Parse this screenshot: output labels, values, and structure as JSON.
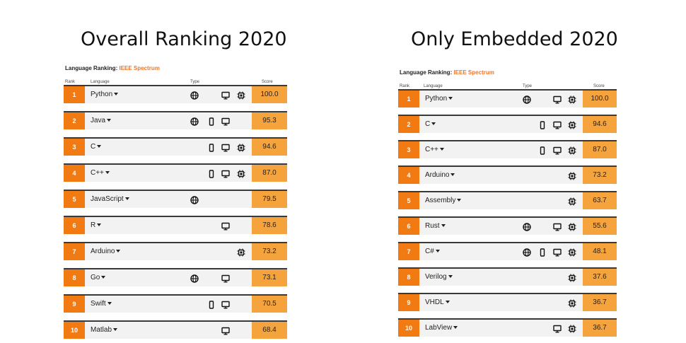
{
  "left": {
    "title": "Overall Ranking 2020",
    "subhead_label": "Language Ranking:",
    "subhead_source": "IEEE Spectrum",
    "headers": {
      "rank": "Rank",
      "language": "Language",
      "type": "Type",
      "score": "Score"
    },
    "rows": [
      {
        "rank": "1",
        "language": "Python",
        "score": "100.0",
        "types": [
          "web",
          "",
          "desktop",
          "embedded"
        ]
      },
      {
        "rank": "2",
        "language": "Java",
        "score": "95.3",
        "types": [
          "web",
          "mobile",
          "desktop",
          ""
        ]
      },
      {
        "rank": "3",
        "language": "C",
        "score": "94.6",
        "types": [
          "",
          "mobile",
          "desktop",
          "embedded"
        ]
      },
      {
        "rank": "4",
        "language": "C++",
        "score": "87.0",
        "types": [
          "",
          "mobile",
          "desktop",
          "embedded"
        ]
      },
      {
        "rank": "5",
        "language": "JavaScript",
        "score": "79.5",
        "types": [
          "web",
          "",
          "",
          ""
        ]
      },
      {
        "rank": "6",
        "language": "R",
        "score": "78.6",
        "types": [
          "",
          "",
          "desktop",
          ""
        ]
      },
      {
        "rank": "7",
        "language": "Arduino",
        "score": "73.2",
        "types": [
          "",
          "",
          "",
          "embedded"
        ]
      },
      {
        "rank": "8",
        "language": "Go",
        "score": "73.1",
        "types": [
          "web",
          "",
          "desktop",
          ""
        ]
      },
      {
        "rank": "9",
        "language": "Swift",
        "score": "70.5",
        "types": [
          "",
          "mobile",
          "desktop",
          ""
        ]
      },
      {
        "rank": "10",
        "language": "Matlab",
        "score": "68.4",
        "types": [
          "",
          "",
          "desktop",
          ""
        ]
      }
    ]
  },
  "right": {
    "title": "Only Embedded 2020",
    "subhead_label": "Language Ranking:",
    "subhead_source": "IEEE Spectrum",
    "headers": {
      "rank": "Rank",
      "language": "Language",
      "type": "Type",
      "score": "Score"
    },
    "rows": [
      {
        "rank": "1",
        "language": "Python",
        "score": "100.0",
        "types": [
          "web",
          "",
          "desktop",
          "embedded"
        ]
      },
      {
        "rank": "2",
        "language": "C",
        "score": "94.6",
        "types": [
          "",
          "mobile",
          "desktop",
          "embedded"
        ]
      },
      {
        "rank": "3",
        "language": "C++",
        "score": "87.0",
        "types": [
          "",
          "mobile",
          "desktop",
          "embedded"
        ]
      },
      {
        "rank": "4",
        "language": "Arduino",
        "score": "73.2",
        "types": [
          "",
          "",
          "",
          "embedded"
        ]
      },
      {
        "rank": "5",
        "language": "Assembly",
        "score": "63.7",
        "types": [
          "",
          "",
          "",
          "embedded"
        ]
      },
      {
        "rank": "6",
        "language": "Rust",
        "score": "55.6",
        "types": [
          "web",
          "",
          "desktop",
          "embedded"
        ]
      },
      {
        "rank": "7",
        "language": "C#",
        "score": "48.1",
        "types": [
          "web",
          "mobile",
          "desktop",
          "embedded"
        ]
      },
      {
        "rank": "8",
        "language": "Verilog",
        "score": "37.6",
        "types": [
          "",
          "",
          "",
          "embedded"
        ]
      },
      {
        "rank": "9",
        "language": "VHDL",
        "score": "36.7",
        "types": [
          "",
          "",
          "",
          "embedded"
        ]
      },
      {
        "rank": "10",
        "language": "LabView",
        "score": "36.7",
        "types": [
          "",
          "",
          "desktop",
          "embedded"
        ]
      }
    ]
  },
  "colors": {
    "rank_bg": "#f27a12",
    "score_bg": "#f5a33c",
    "source": "#f0762a"
  },
  "icons": {
    "web": "globe-icon",
    "mobile": "mobile-icon",
    "desktop": "desktop-icon",
    "embedded": "chip-icon"
  }
}
